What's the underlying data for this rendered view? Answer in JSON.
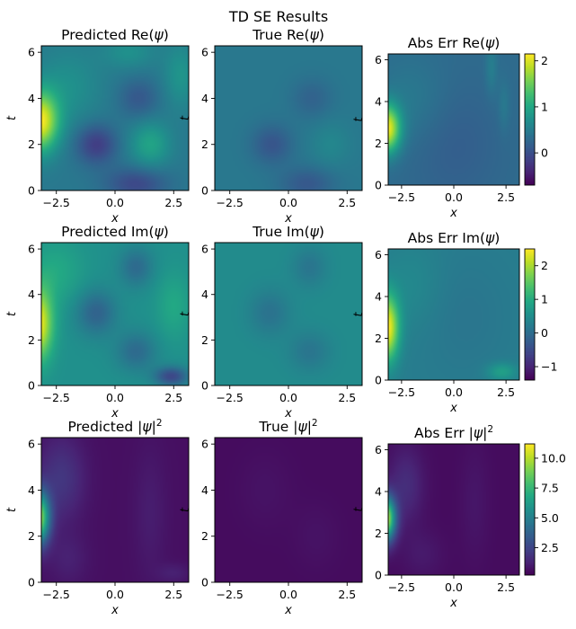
{
  "figure": {
    "suptitle": "TD SE Results"
  },
  "chart_data": [
    {
      "type": "heatmap",
      "title": "Predicted Re(ψ)",
      "xlabel": "x",
      "ylabel": "t",
      "xlim": [
        -3.14,
        3.14
      ],
      "ylim": [
        0,
        6.28
      ],
      "x_ticks": [
        "−2.5",
        "0.0",
        "2.5"
      ],
      "y_ticks": [
        "0",
        "2",
        "4",
        "6"
      ],
      "pattern": "pred_re",
      "colorbar": false
    },
    {
      "type": "heatmap",
      "title": "True Re(ψ)",
      "xlabel": "x",
      "ylabel": "t",
      "xlim": [
        -3.14,
        3.14
      ],
      "ylim": [
        0,
        6.28
      ],
      "x_ticks": [
        "−2.5",
        "0.0",
        "2.5"
      ],
      "y_ticks": [
        "0",
        "2",
        "4",
        "6"
      ],
      "pattern": "true_re",
      "colorbar": false
    },
    {
      "type": "heatmap",
      "title": "Abs Err Re(ψ)",
      "xlabel": "x",
      "ylabel": "t",
      "xlim": [
        -3.14,
        3.14
      ],
      "ylim": [
        0,
        6.28
      ],
      "x_ticks": [
        "−2.5",
        "0.0",
        "2.5"
      ],
      "y_ticks": [
        "0",
        "2",
        "4",
        "6"
      ],
      "pattern": "err_re",
      "colorbar": true,
      "colorbar_range": [
        -0.7,
        2.15
      ],
      "colorbar_ticks": [
        {
          "value": 0,
          "label": "0"
        },
        {
          "value": 1,
          "label": "1"
        },
        {
          "value": 2,
          "label": "2"
        }
      ]
    },
    {
      "type": "heatmap",
      "title": "Predicted Im(ψ)",
      "xlabel": "x",
      "ylabel": "t",
      "xlim": [
        -3.14,
        3.14
      ],
      "ylim": [
        0,
        6.28
      ],
      "x_ticks": [
        "−2.5",
        "0.0",
        "2.5"
      ],
      "y_ticks": [
        "0",
        "2",
        "4",
        "6"
      ],
      "pattern": "pred_im",
      "colorbar": false
    },
    {
      "type": "heatmap",
      "title": "True Im(ψ)",
      "xlabel": "x",
      "ylabel": "t",
      "xlim": [
        -3.14,
        3.14
      ],
      "ylim": [
        0,
        6.28
      ],
      "x_ticks": [
        "−2.5",
        "0.0",
        "2.5"
      ],
      "y_ticks": [
        "0",
        "2",
        "4",
        "6"
      ],
      "pattern": "true_im",
      "colorbar": false
    },
    {
      "type": "heatmap",
      "title": "Abs Err Im(ψ)",
      "xlabel": "x",
      "ylabel": "t",
      "xlim": [
        -3.14,
        3.14
      ],
      "ylim": [
        0,
        6.28
      ],
      "x_ticks": [
        "−2.5",
        "0.0",
        "2.5"
      ],
      "y_ticks": [
        "0",
        "2",
        "4",
        "6"
      ],
      "pattern": "err_im",
      "colorbar": true,
      "colorbar_range": [
        -1.4,
        2.5
      ],
      "colorbar_ticks": [
        {
          "value": -1,
          "label": "−1"
        },
        {
          "value": 0,
          "label": "0"
        },
        {
          "value": 1,
          "label": "1"
        },
        {
          "value": 2,
          "label": "2"
        }
      ]
    },
    {
      "type": "heatmap",
      "title": "Predicted |ψ|²",
      "xlabel": "x",
      "ylabel": "t",
      "xlim": [
        -3.14,
        3.14
      ],
      "ylim": [
        0,
        6.28
      ],
      "x_ticks": [
        "−2.5",
        "0.0",
        "2.5"
      ],
      "y_ticks": [
        "0",
        "2",
        "4",
        "6"
      ],
      "pattern": "pred_abs",
      "colorbar": false
    },
    {
      "type": "heatmap",
      "title": "True |ψ|²",
      "xlabel": "x",
      "ylabel": "t",
      "xlim": [
        -3.14,
        3.14
      ],
      "ylim": [
        0,
        6.28
      ],
      "x_ticks": [
        "−2.5",
        "0.0",
        "2.5"
      ],
      "y_ticks": [
        "0",
        "2",
        "4",
        "6"
      ],
      "pattern": "true_abs",
      "colorbar": false
    },
    {
      "type": "heatmap",
      "title": "Abs Err |ψ|²",
      "xlabel": "x",
      "ylabel": "t",
      "xlim": [
        -3.14,
        3.14
      ],
      "ylim": [
        0,
        6.28
      ],
      "x_ticks": [
        "−2.5",
        "0.0",
        "2.5"
      ],
      "y_ticks": [
        "0",
        "2",
        "4",
        "6"
      ],
      "pattern": "err_abs",
      "colorbar": true,
      "colorbar_range": [
        0.2,
        11.2
      ],
      "colorbar_ticks": [
        {
          "value": 2.5,
          "label": "2.5"
        },
        {
          "value": 5,
          "label": "5.0"
        },
        {
          "value": 7.5,
          "label": "7.5"
        },
        {
          "value": 10,
          "label": "10.0"
        }
      ]
    }
  ]
}
